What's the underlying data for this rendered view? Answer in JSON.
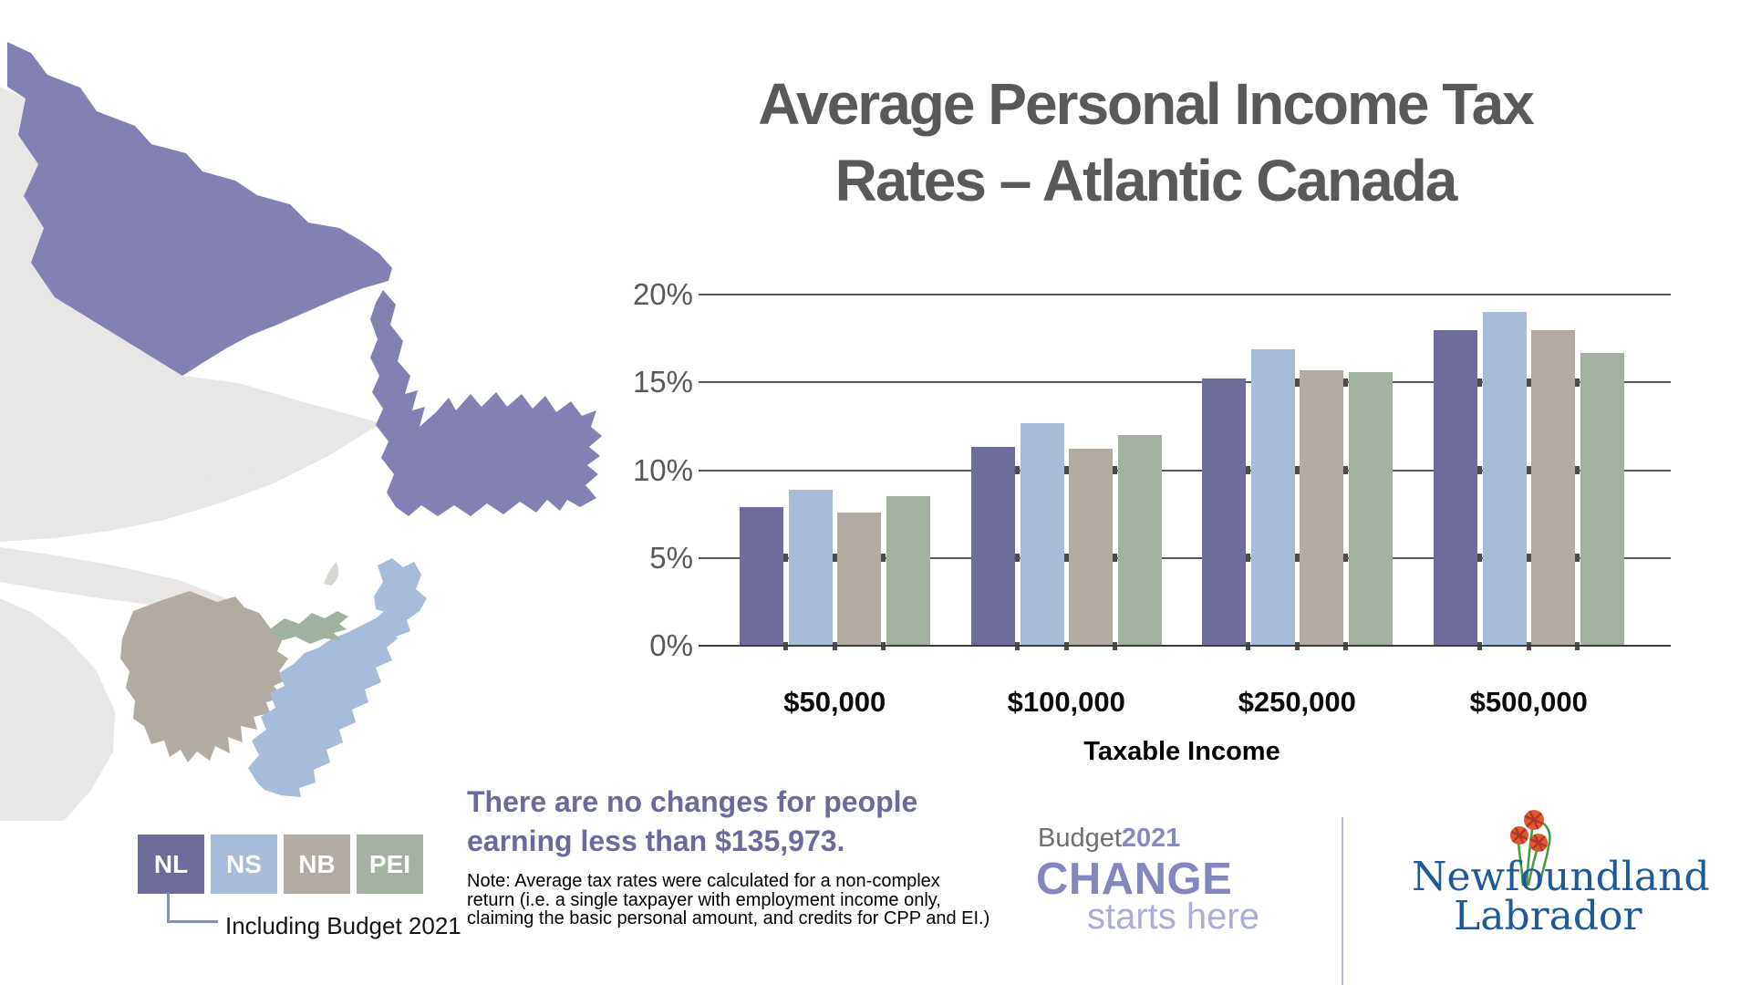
{
  "title": {
    "line1": "Average Personal Income Tax",
    "line2": "Rates – Atlantic Canada"
  },
  "chart_data": {
    "type": "bar",
    "title": "Average Personal Income Tax Rates – Atlantic Canada",
    "categories": [
      "$50,000",
      "$100,000",
      "$250,000",
      "$500,000"
    ],
    "series": [
      {
        "name": "NL",
        "color": "#6e6c9b",
        "values": [
          7.9,
          11.3,
          15.2,
          18.0
        ]
      },
      {
        "name": "NS",
        "color": "#a6bcd8",
        "values": [
          8.9,
          12.7,
          16.9,
          19.0
        ]
      },
      {
        "name": "NB",
        "color": "#b2aba1",
        "values": [
          7.6,
          11.2,
          15.7,
          18.0
        ]
      },
      {
        "name": "PEI",
        "color": "#a3b1a1",
        "values": [
          8.5,
          12.0,
          15.6,
          16.7
        ]
      }
    ],
    "xlabel": "Taxable Income",
    "ylabel": "",
    "ylim": [
      0,
      20
    ],
    "y_tick_step": 5,
    "y_tick_labels": [
      "0%",
      "5%",
      "10%",
      "15%",
      "20%"
    ],
    "grid": true,
    "legend_position": "bottom-left-outside"
  },
  "legend": {
    "items": [
      {
        "label": "NL",
        "color": "#6e6c9b"
      },
      {
        "label": "NS",
        "color": "#a6bcd8"
      },
      {
        "label": "NB",
        "color": "#b2aba1"
      },
      {
        "label": "PEI",
        "color": "#a3b1a1"
      }
    ],
    "callout": "Including Budget 2021"
  },
  "statement": {
    "line1": "There are no changes for people",
    "line2": "earning less than $135,973."
  },
  "note": {
    "lines": [
      "Note: Average tax rates were calculated for a non-complex",
      "return (i.e. a single taxpayer with employment income only,",
      "claiming the basic personal amount, and credits for CPP and EI.)"
    ]
  },
  "branding": {
    "budget_label": "Budget",
    "budget_year": "2021",
    "change": "CHANGE",
    "starts_here": "starts here"
  },
  "logo": {
    "line1": "Newfoundland",
    "line2": "Labrador",
    "icon": "pitcher-plant-flowers-icon"
  },
  "map": {
    "name": "Atlantic Canada map",
    "regions": [
      {
        "name": "Newfoundland and Labrador",
        "color": "#8381b3"
      },
      {
        "name": "Nova Scotia",
        "color": "#a6bcd8"
      },
      {
        "name": "New Brunswick",
        "color": "#b2aba1"
      },
      {
        "name": "Prince Edward Island",
        "color": "#9fb19f"
      },
      {
        "name": "Neighbouring land (background)",
        "color": "#e8e7e5"
      },
      {
        "name": "Small gulf islands",
        "color": "#d6d5d2"
      }
    ]
  },
  "colors": {
    "background": "#ffffff",
    "title_text": "#58595b",
    "axis_text": "#58595b",
    "gridline": "#5a5a5a",
    "baseline": "#3c3c3c",
    "statement_text": "#6a6a9c",
    "note_text": "#000000",
    "connector": "#7b97c1",
    "budget_grey": "#6d6e71",
    "budget_purple": "#8789c4",
    "change_purple": "#8486bf",
    "starts_here_purple": "#abadd8",
    "divider": "#b8b9dd",
    "logo_blue": "#1d5a99",
    "flower_orange": "#e0582c",
    "flower_stripe_red": "#ad372c",
    "stem_green": "#4a9b43"
  }
}
